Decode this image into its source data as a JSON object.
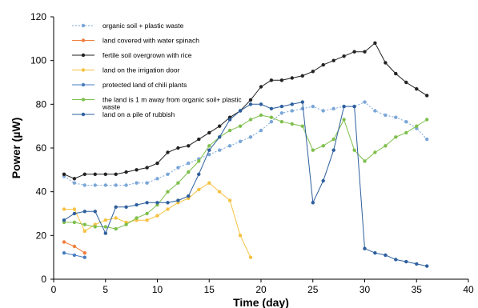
{
  "chart_data": {
    "type": "line",
    "xlabel": "Time (day)",
    "ylabel": "Power (µW)",
    "xlim": [
      0,
      40
    ],
    "ylim": [
      0,
      120
    ],
    "xticks": [
      0,
      5,
      10,
      15,
      20,
      25,
      30,
      35,
      40
    ],
    "yticks": [
      0,
      20,
      40,
      60,
      80,
      100,
      120
    ],
    "grid": false,
    "legend_position": "top-left",
    "series": [
      {
        "name": "organic soil + plastic waste",
        "color": "#7aa6d8",
        "dash": "dotted",
        "x": [
          1,
          2,
          3,
          4,
          5,
          6,
          7,
          8,
          9,
          10,
          11,
          12,
          13,
          14,
          15,
          16,
          17,
          18,
          19,
          20,
          21,
          22,
          23,
          24,
          25,
          26,
          27,
          28,
          29,
          30,
          31,
          32,
          33,
          34,
          35,
          36
        ],
        "y": [
          47,
          44,
          43,
          43,
          43,
          43,
          43,
          44,
          44,
          46,
          48,
          51,
          53,
          55,
          57,
          59,
          61,
          63,
          65,
          68,
          72,
          76,
          77,
          78,
          79,
          77,
          78,
          79,
          79,
          81,
          77,
          75,
          74,
          72,
          69,
          64
        ]
      },
      {
        "name": "land covered with water spinach",
        "color": "#f07f3c",
        "dash": "solid",
        "x": [
          1,
          2,
          3
        ],
        "y": [
          17,
          15,
          12
        ]
      },
      {
        "name": "fertile soil overgrown with rice",
        "color": "#222222",
        "dash": "solid",
        "x": [
          1,
          2,
          3,
          4,
          5,
          6,
          7,
          8,
          9,
          10,
          11,
          12,
          13,
          14,
          15,
          16,
          17,
          18,
          19,
          20,
          21,
          22,
          23,
          24,
          25,
          26,
          27,
          28,
          29,
          30,
          31,
          32,
          33,
          34,
          35,
          36
        ],
        "y": [
          48,
          46,
          48,
          48,
          48,
          48,
          49,
          50,
          51,
          53,
          58,
          60,
          61,
          64,
          67,
          70,
          74,
          77,
          82,
          88,
          91,
          91,
          92,
          93,
          95,
          98,
          100,
          102,
          104,
          104,
          108,
          99,
          94,
          90,
          87,
          84
        ]
      },
      {
        "name": "land on the irrigation door",
        "color": "#f5c242",
        "dash": "solid",
        "x": [
          1,
          2,
          3,
          4,
          5,
          6,
          7,
          8,
          9,
          10,
          11,
          12,
          13,
          14,
          15,
          16,
          17,
          18,
          19
        ],
        "y": [
          32,
          32,
          22,
          25,
          27,
          28,
          26,
          27,
          27,
          29,
          32,
          35,
          37,
          41,
          44,
          40,
          36,
          20,
          10
        ]
      },
      {
        "name": "protected land of chili plants",
        "color": "#4a7fc1",
        "dash": "solid",
        "x": [
          1,
          2,
          3
        ],
        "y": [
          12,
          11,
          10
        ]
      },
      {
        "name": "the land is 1 m away from organic soil+ plastic waste",
        "color": "#7fbf4d",
        "dash": "solid",
        "x": [
          1,
          2,
          3,
          4,
          5,
          6,
          7,
          8,
          9,
          10,
          11,
          12,
          13,
          14,
          15,
          16,
          17,
          18,
          19,
          20,
          21,
          22,
          23,
          24,
          25,
          26,
          27,
          28,
          29,
          30,
          31,
          32,
          33,
          34,
          35,
          36
        ],
        "y": [
          26,
          26,
          25,
          24,
          24,
          23,
          25,
          28,
          30,
          34,
          40,
          44,
          49,
          54,
          61,
          65,
          68,
          70,
          73,
          75,
          74,
          72,
          71,
          70,
          59,
          61,
          64,
          73,
          59,
          54,
          58,
          61,
          65,
          67,
          70,
          73
        ]
      },
      {
        "name": "land on a pile of rubbish",
        "color": "#2e5f9e",
        "dash": "solid",
        "x": [
          1,
          2,
          3,
          4,
          5,
          6,
          7,
          8,
          9,
          10,
          11,
          12,
          13,
          14,
          15,
          16,
          17,
          18,
          19,
          20,
          21,
          22,
          23,
          24,
          25,
          26,
          27,
          28,
          29,
          30,
          31,
          32,
          33,
          34,
          35,
          36
        ],
        "y": [
          27,
          30,
          31,
          31,
          21,
          33,
          33,
          34,
          35,
          35,
          35,
          36,
          38,
          48,
          59,
          65,
          73,
          77,
          80,
          80,
          78,
          79,
          80,
          81,
          35,
          45,
          59,
          79,
          79,
          14,
          12,
          11,
          9,
          8,
          7,
          6
        ]
      }
    ]
  }
}
